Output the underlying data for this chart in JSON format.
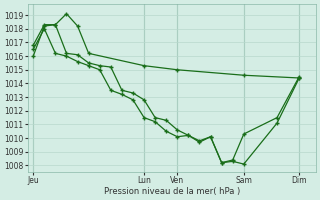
{
  "xlabel": "Pression niveau de la mer( hPa )",
  "background_color": "#d4ede4",
  "grid_color": "#b8d8cc",
  "line_color": "#1a6e1a",
  "marker": "+",
  "ylim": [
    1007.5,
    1019.8
  ],
  "yticks": [
    1008,
    1009,
    1010,
    1011,
    1012,
    1013,
    1014,
    1015,
    1016,
    1017,
    1018,
    1019
  ],
  "xtick_labels": [
    "Jeu",
    "Lun",
    "Ven",
    "Sam",
    "Dim"
  ],
  "xtick_positions": [
    0,
    10,
    13,
    19,
    24
  ],
  "xlim": [
    -0.5,
    25.5
  ],
  "series1_x": [
    0,
    1,
    2,
    3,
    4,
    5,
    10,
    13,
    19,
    24
  ],
  "series1_y": [
    1016.0,
    1018.2,
    1018.3,
    1019.1,
    1018.2,
    1016.2,
    1015.3,
    1015.0,
    1014.6,
    1014.4
  ],
  "series2_x": [
    0,
    1,
    2,
    3,
    4,
    5,
    6,
    7,
    8,
    9,
    10,
    11,
    12,
    13,
    14,
    15,
    16,
    17,
    18,
    19,
    22,
    24
  ],
  "series2_y": [
    1016.8,
    1018.3,
    1018.3,
    1016.2,
    1016.1,
    1015.5,
    1015.3,
    1015.2,
    1013.5,
    1013.3,
    1012.8,
    1011.5,
    1011.3,
    1010.6,
    1010.2,
    1009.7,
    1010.1,
    1008.2,
    1008.3,
    1008.1,
    1011.1,
    1014.4
  ],
  "series3_x": [
    0,
    1,
    2,
    3,
    4,
    5,
    6,
    7,
    8,
    9,
    10,
    11,
    12,
    13,
    14,
    15,
    16,
    17,
    18,
    19,
    22,
    24
  ],
  "series3_y": [
    1016.5,
    1018.0,
    1016.2,
    1016.0,
    1015.6,
    1015.3,
    1015.0,
    1013.5,
    1013.2,
    1012.8,
    1011.5,
    1011.2,
    1010.5,
    1010.1,
    1010.2,
    1009.8,
    1010.1,
    1008.2,
    1008.4,
    1010.3,
    1011.5,
    1014.5
  ]
}
